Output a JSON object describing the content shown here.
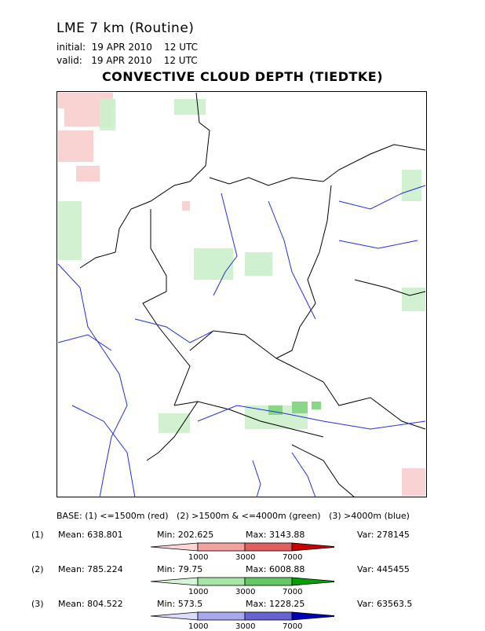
{
  "header": {
    "model": "LME 7 km (Routine)",
    "initial": "initial:  19 APR 2010    12 UTC",
    "valid": "valid:   19 APR 2010    12 UTC",
    "main_title": "CONVECTIVE CLOUD DEPTH (TIEDTKE)"
  },
  "base_note": "BASE: (1) <=1500m (red)   (2) >1500m & <=4000m (green)   (3) >4000m (blue)",
  "stats": [
    {
      "index": "(1)",
      "mean": "Mean: 638.801",
      "min": "Min: 202.625",
      "max": "Max: 3143.88",
      "var": "Var: 278145",
      "colors": [
        "#ffd6d6",
        "#f2a0a0",
        "#e06060",
        "#c80000"
      ],
      "ticks": [
        "1000",
        "3000",
        "7000"
      ]
    },
    {
      "index": "(2)",
      "mean": "Mean: 785.224",
      "min": "Min: 79.75",
      "max": "Max: 6008.88",
      "var": "Var: 445455",
      "colors": [
        "#d6f5d6",
        "#a6e6a6",
        "#64c864",
        "#00a000"
      ],
      "ticks": [
        "1000",
        "3000",
        "7000"
      ]
    },
    {
      "index": "(3)",
      "mean": "Mean: 804.522",
      "min": "Min: 573.5",
      "max": "Max: 1228.25",
      "var": "Var: 63563.5",
      "colors": [
        "#dcdcff",
        "#a8a8ee",
        "#6464d2",
        "#0000b4"
      ],
      "ticks": [
        "1000",
        "3000",
        "7000"
      ]
    }
  ]
}
